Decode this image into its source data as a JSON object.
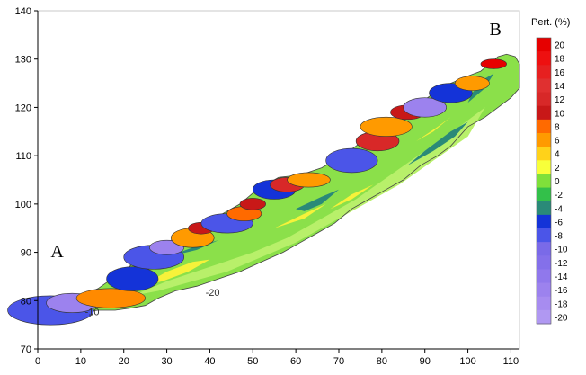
{
  "chart_data": {
    "type": "heatmap",
    "title": "",
    "xlabel": "",
    "ylabel": "",
    "xlim": [
      0,
      112
    ],
    "ylim": [
      70,
      140
    ],
    "x_ticks": [
      0,
      10,
      20,
      30,
      40,
      50,
      60,
      70,
      80,
      90,
      100,
      110
    ],
    "y_ticks": [
      70,
      80,
      90,
      100,
      110,
      120,
      130,
      140
    ],
    "points": [
      {
        "label": "A",
        "x": 3,
        "y": 89
      },
      {
        "label": "B",
        "x": 105,
        "y": 135
      }
    ],
    "colorbar": {
      "title": "Pert. (%)",
      "levels": [
        20,
        18,
        16,
        14,
        12,
        10,
        8,
        6,
        4,
        2,
        0,
        -2,
        -4,
        -6,
        -8,
        -10,
        -12,
        -14,
        -16,
        -18,
        -20
      ],
      "colors": [
        "#e60000",
        "#ee1010",
        "#e62020",
        "#e03030",
        "#d82828",
        "#c81818",
        "#ff6a00",
        "#ff9a00",
        "#ffd21a",
        "#f8ff3a",
        "#7fe03a",
        "#33c04a",
        "#2a8a78",
        "#1433d8",
        "#4b55e8",
        "#7a6ae8",
        "#8470ea",
        "#9078ec",
        "#9c82ee",
        "#a78cf0",
        "#b098f2"
      ]
    },
    "contour_labels": [
      {
        "text": "-10",
        "x": 11,
        "y": 77
      },
      {
        "text": "-20",
        "x": 39,
        "y": 81
      }
    ]
  }
}
